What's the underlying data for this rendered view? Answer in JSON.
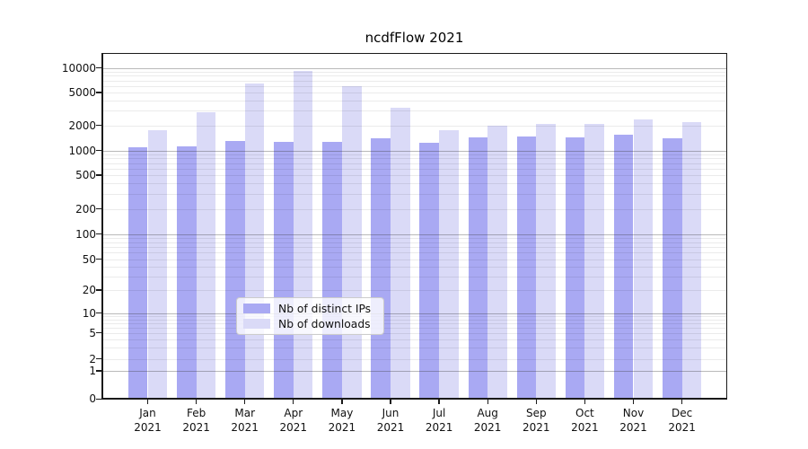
{
  "title": "ncdfFlow 2021",
  "chart_data": {
    "type": "bar",
    "title": "ncdfFlow 2021",
    "categories": [
      "Jan 2021",
      "Feb 2021",
      "Mar 2021",
      "Apr 2021",
      "May 2021",
      "Jun 2021",
      "Jul 2021",
      "Aug 2021",
      "Sep 2021",
      "Oct 2021",
      "Nov 2021",
      "Dec 2021"
    ],
    "x_tick_months": [
      "Jan",
      "Feb",
      "Mar",
      "Apr",
      "May",
      "Jun",
      "Jul",
      "Aug",
      "Sep",
      "Oct",
      "Nov",
      "Dec"
    ],
    "x_tick_year": "2021",
    "series": [
      {
        "name": "Nb of distinct IPs",
        "color": "#a9a9f3",
        "values": [
          1100,
          1130,
          1300,
          1270,
          1250,
          1390,
          1230,
          1420,
          1460,
          1430,
          1560,
          1400
        ]
      },
      {
        "name": "Nb of downloads",
        "color": "#dadaf7",
        "values": [
          1730,
          2860,
          6400,
          9200,
          6000,
          3300,
          1750,
          2000,
          2080,
          2070,
          2370,
          2180
        ]
      }
    ],
    "y_ticks": [
      0,
      1,
      2,
      5,
      10,
      20,
      50,
      100,
      200,
      500,
      1000,
      2000,
      5000,
      10000
    ],
    "y_scale": "symlog",
    "ylim": [
      0,
      15000
    ],
    "grid": {
      "axis": "y",
      "major": true,
      "minor": true
    },
    "legend": {
      "position": "lower-center-inside",
      "entries": [
        "Nb of distinct IPs",
        "Nb of downloads"
      ]
    }
  }
}
